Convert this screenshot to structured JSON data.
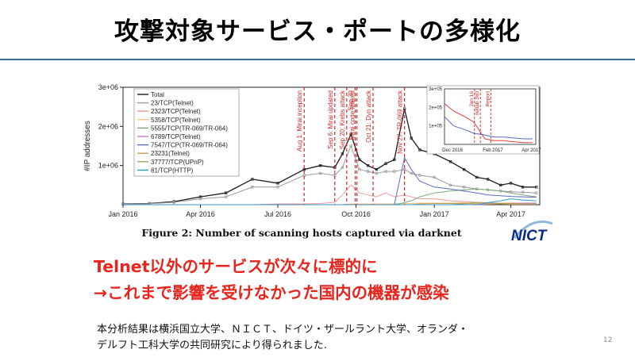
{
  "slide": {
    "title": "攻撃対象サービス・ポートの多様化",
    "caption": "Figure 2: Number of scanning hosts captured via darknet",
    "headline_line1": "Telnet以外のサービスが次々に標的に",
    "headline_line2": "→これまで影響を受けなかった国内の機器が感染",
    "note_line1": "本分析結果は横浜国立大学、ＮＩＣＴ、ドイツ・ザールラント大学、オランダ・",
    "note_line2": "デルフト工科大学の共同研究により得られました.",
    "page_number": "12",
    "logo_text": "NICT"
  },
  "chart_data": {
    "type": "line",
    "title": "",
    "xlabel": "",
    "ylabel": "#IP addresses",
    "x_ticks": [
      "Jan 2016",
      "Apr 2016",
      "Jul 2016",
      "Oct 2016",
      "Jan 2017",
      "Apr 2017"
    ],
    "y_ticks": [
      "1e+06",
      "2e+06",
      "3e+06"
    ],
    "ylim": [
      0,
      3000000
    ],
    "grid": false,
    "legend_position": "top-left",
    "x": [
      "2016-01-01",
      "2016-02-01",
      "2016-03-01",
      "2016-04-01",
      "2016-05-01",
      "2016-06-01",
      "2016-07-01",
      "2016-08-01",
      "2016-08-20",
      "2016-09-06",
      "2016-09-15",
      "2016-09-25",
      "2016-10-05",
      "2016-10-15",
      "2016-10-25",
      "2016-11-05",
      "2016-11-15",
      "2016-11-27",
      "2016-12-05",
      "2016-12-15",
      "2017-01-01",
      "2017-01-20",
      "2017-02-05",
      "2017-02-20",
      "2017-03-05",
      "2017-03-20",
      "2017-04-01",
      "2017-04-15",
      "2017-05-01"
    ],
    "series": [
      {
        "name": "Total",
        "color": "#1a1a1a",
        "values": [
          20000,
          30000,
          80000,
          200000,
          300000,
          650000,
          550000,
          900000,
          1000000,
          950000,
          1300000,
          1800000,
          1150000,
          1000000,
          900000,
          1050000,
          1150000,
          2450000,
          1700000,
          1400000,
          1300000,
          1100000,
          900000,
          700000,
          650000,
          500000,
          550000,
          450000,
          450000
        ]
      },
      {
        "name": "23/TCP(Telnet)",
        "color": "#9a9a9a",
        "values": [
          15000,
          25000,
          60000,
          150000,
          200000,
          450000,
          450000,
          750000,
          800000,
          750000,
          950000,
          1500000,
          900000,
          850000,
          800000,
          850000,
          850000,
          900000,
          800000,
          750000,
          700000,
          500000,
          450000,
          400000,
          380000,
          350000,
          330000,
          320000,
          300000
        ]
      },
      {
        "name": "2323/TCP(Telnet)",
        "color": "#f09a9a",
        "values": [
          0,
          0,
          0,
          0,
          0,
          0,
          20000,
          20000,
          30000,
          60000,
          250000,
          500000,
          300000,
          250000,
          200000,
          300000,
          200000,
          250000,
          200000,
          150000,
          150000,
          100000,
          80000,
          60000,
          50000,
          40000,
          40000,
          40000,
          40000
        ]
      },
      {
        "name": "5358/TCP(Telnet)",
        "color": "#f0c080",
        "values": [
          0,
          0,
          0,
          0,
          0,
          0,
          0,
          0,
          0,
          0,
          0,
          20000,
          20000,
          20000,
          20000,
          20000,
          20000,
          30000,
          30000,
          40000,
          40000,
          40000,
          50000,
          40000,
          30000,
          30000,
          30000,
          20000,
          20000
        ]
      },
      {
        "name": "5555/TCP(TR-069/TR-064)",
        "color": "#7aa87a",
        "values": [
          0,
          0,
          0,
          0,
          0,
          0,
          0,
          0,
          0,
          0,
          0,
          0,
          0,
          0,
          0,
          0,
          0,
          50000,
          100000,
          200000,
          300000,
          350000,
          380000,
          400000,
          380000,
          350000,
          300000,
          250000,
          200000
        ]
      },
      {
        "name": "6789/TCP(Telnet)",
        "color": "#d07ad0",
        "values": [
          0,
          0,
          0,
          0,
          0,
          0,
          0,
          0,
          0,
          0,
          0,
          0,
          0,
          0,
          0,
          0,
          0,
          0,
          0,
          0,
          0,
          0,
          0,
          0,
          10000,
          20000,
          30000,
          40000,
          40000
        ]
      },
      {
        "name": "7547/TCP(TR-069/TR-064)",
        "color": "#5a6ac0",
        "values": [
          0,
          0,
          0,
          0,
          0,
          0,
          0,
          0,
          0,
          0,
          0,
          0,
          0,
          0,
          0,
          0,
          0,
          1200000,
          900000,
          600000,
          450000,
          400000,
          350000,
          300000,
          250000,
          230000,
          210000,
          200000,
          190000
        ]
      },
      {
        "name": "23231(Telnet)",
        "color": "#c8a050",
        "values": [
          0,
          0,
          0,
          0,
          0,
          0,
          0,
          0,
          0,
          0,
          0,
          0,
          0,
          0,
          0,
          0,
          0,
          0,
          0,
          20000,
          30000,
          30000,
          30000,
          20000,
          20000,
          20000,
          10000,
          10000,
          10000
        ]
      },
      {
        "name": "37777/TCP(UPnP)",
        "color": "#a0a060",
        "values": [
          0,
          0,
          0,
          0,
          0,
          0,
          0,
          0,
          0,
          0,
          0,
          0,
          0,
          0,
          0,
          0,
          0,
          0,
          0,
          0,
          0,
          0,
          20000,
          60000,
          40000,
          30000,
          30000,
          20000,
          20000
        ]
      },
      {
        "name": "81/TCP(HTTP)",
        "color": "#2a9ad0",
        "values": [
          0,
          0,
          0,
          0,
          0,
          0,
          0,
          0,
          0,
          0,
          0,
          0,
          0,
          0,
          0,
          0,
          0,
          0,
          0,
          0,
          0,
          0,
          0,
          0,
          50000,
          100000,
          150000,
          120000,
          100000
        ]
      }
    ],
    "annotations": [
      {
        "x": "2016-08-01",
        "label": "Aug 1: Mirai inception"
      },
      {
        "x": "2016-09-06",
        "label": "Sep 6: Mirai updated"
      },
      {
        "x": "2016-09-20",
        "label": "Sep 20: Krebs attack"
      },
      {
        "x": "2016-09-30",
        "label": "Sep 30"
      },
      {
        "x": "2016-10-02",
        "label": "Mirai code leaked"
      },
      {
        "x": "2016-10-21",
        "label": "Oct 21: Dyn attack"
      },
      {
        "x": "2016-11-27",
        "label": "Nov 27: TR-069 attack"
      }
    ],
    "inset": {
      "x_ticks": [
        "Dec 2016",
        "Feb 2017",
        "Apr 2017"
      ],
      "y_ticks": [
        "1e+05",
        "2e+05",
        "3e+05"
      ],
      "ylim": [
        0,
        300000
      ],
      "x": [
        "2016-12-01",
        "2016-12-15",
        "2017-01-01",
        "2017-01-15",
        "2017-02-01",
        "2017-02-15",
        "2017-03-01",
        "2017-03-15",
        "2017-04-01",
        "2017-04-15"
      ],
      "series": [
        {
          "name": "2323/TCP(Telnet)",
          "color": "#e84040",
          "values": [
            220000,
            180000,
            150000,
            120000,
            30000,
            20000,
            20000,
            15000,
            10000,
            10000
          ]
        },
        {
          "name": "7547/TCP(TR-069/TR-064)",
          "color": "#5a6ac0",
          "values": [
            150000,
            100000,
            80000,
            60000,
            50000,
            40000,
            40000,
            35000,
            30000,
            30000
          ]
        }
      ],
      "annotations": [
        {
          "x": "2017-01-16",
          "label": "Jan 16"
        },
        {
          "x": "2017-01-25",
          "label": "netlab 360"
        },
        {
          "x": "2017-02-10",
          "label": "Report"
        }
      ]
    }
  }
}
